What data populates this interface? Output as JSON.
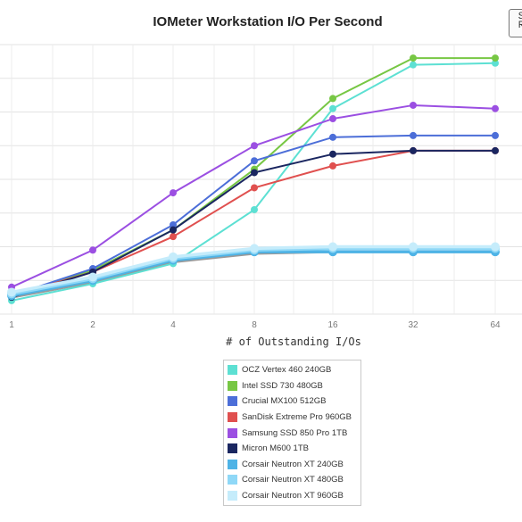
{
  "chart_data": {
    "type": "line",
    "title": "IOMeter Workstation I/O Per Second",
    "xlabel": "# of Outstanding I/Os",
    "ylabel": "",
    "categories": [
      "1",
      "2",
      "4",
      "8",
      "16",
      "32",
      "64"
    ],
    "grid": true,
    "legend_position": "bottom",
    "series": [
      {
        "name": "OCZ Vertex 460 240GB",
        "color": "#5de0d3",
        "values": [
          4,
          9,
          15,
          31,
          61,
          74,
          74.5
        ]
      },
      {
        "name": "Intel SSD 730 480GB",
        "color": "#77c744",
        "values": [
          5.5,
          13,
          25,
          43,
          64,
          76,
          76
        ]
      },
      {
        "name": "Crucial MX100 512GB",
        "color": "#4c6ed8",
        "values": [
          5.5,
          13.5,
          26.5,
          45.5,
          52.5,
          53,
          53
        ]
      },
      {
        "name": "SanDisk Extreme Pro 960GB",
        "color": "#e0504f",
        "values": [
          5.5,
          12.5,
          23,
          37.5,
          44,
          48.5,
          48.5
        ]
      },
      {
        "name": "Samsung SSD 850 Pro 1TB",
        "color": "#9b4fe2",
        "values": [
          8,
          19,
          36,
          50,
          58,
          62,
          61
        ]
      },
      {
        "name": "Micron M600 1TB",
        "color": "#1a2660",
        "values": [
          5,
          12.5,
          25,
          42,
          47.5,
          48.5,
          48.5
        ]
      },
      {
        "name": "Corsair Neutron XT 240GB",
        "color": "#4eb3e6",
        "values": [
          5.5,
          10,
          16,
          18.5,
          18.5,
          18.5,
          18.5
        ]
      },
      {
        "name": "Corsair Neutron XT 480GB",
        "color": "#8fd8f7",
        "values": [
          6,
          10.5,
          16.5,
          19,
          19.5,
          19.5,
          19.5
        ]
      },
      {
        "name": "Corsair Neutron XT 960GB",
        "color": "#c5ecfb",
        "values": [
          6.5,
          11,
          17,
          19.5,
          20,
          20,
          20
        ]
      }
    ],
    "gray_line": {
      "values": [
        5,
        9.5,
        15.5,
        18,
        18.5,
        18.5,
        18.5
      ]
    },
    "ylim": [
      0,
      80
    ]
  }
}
